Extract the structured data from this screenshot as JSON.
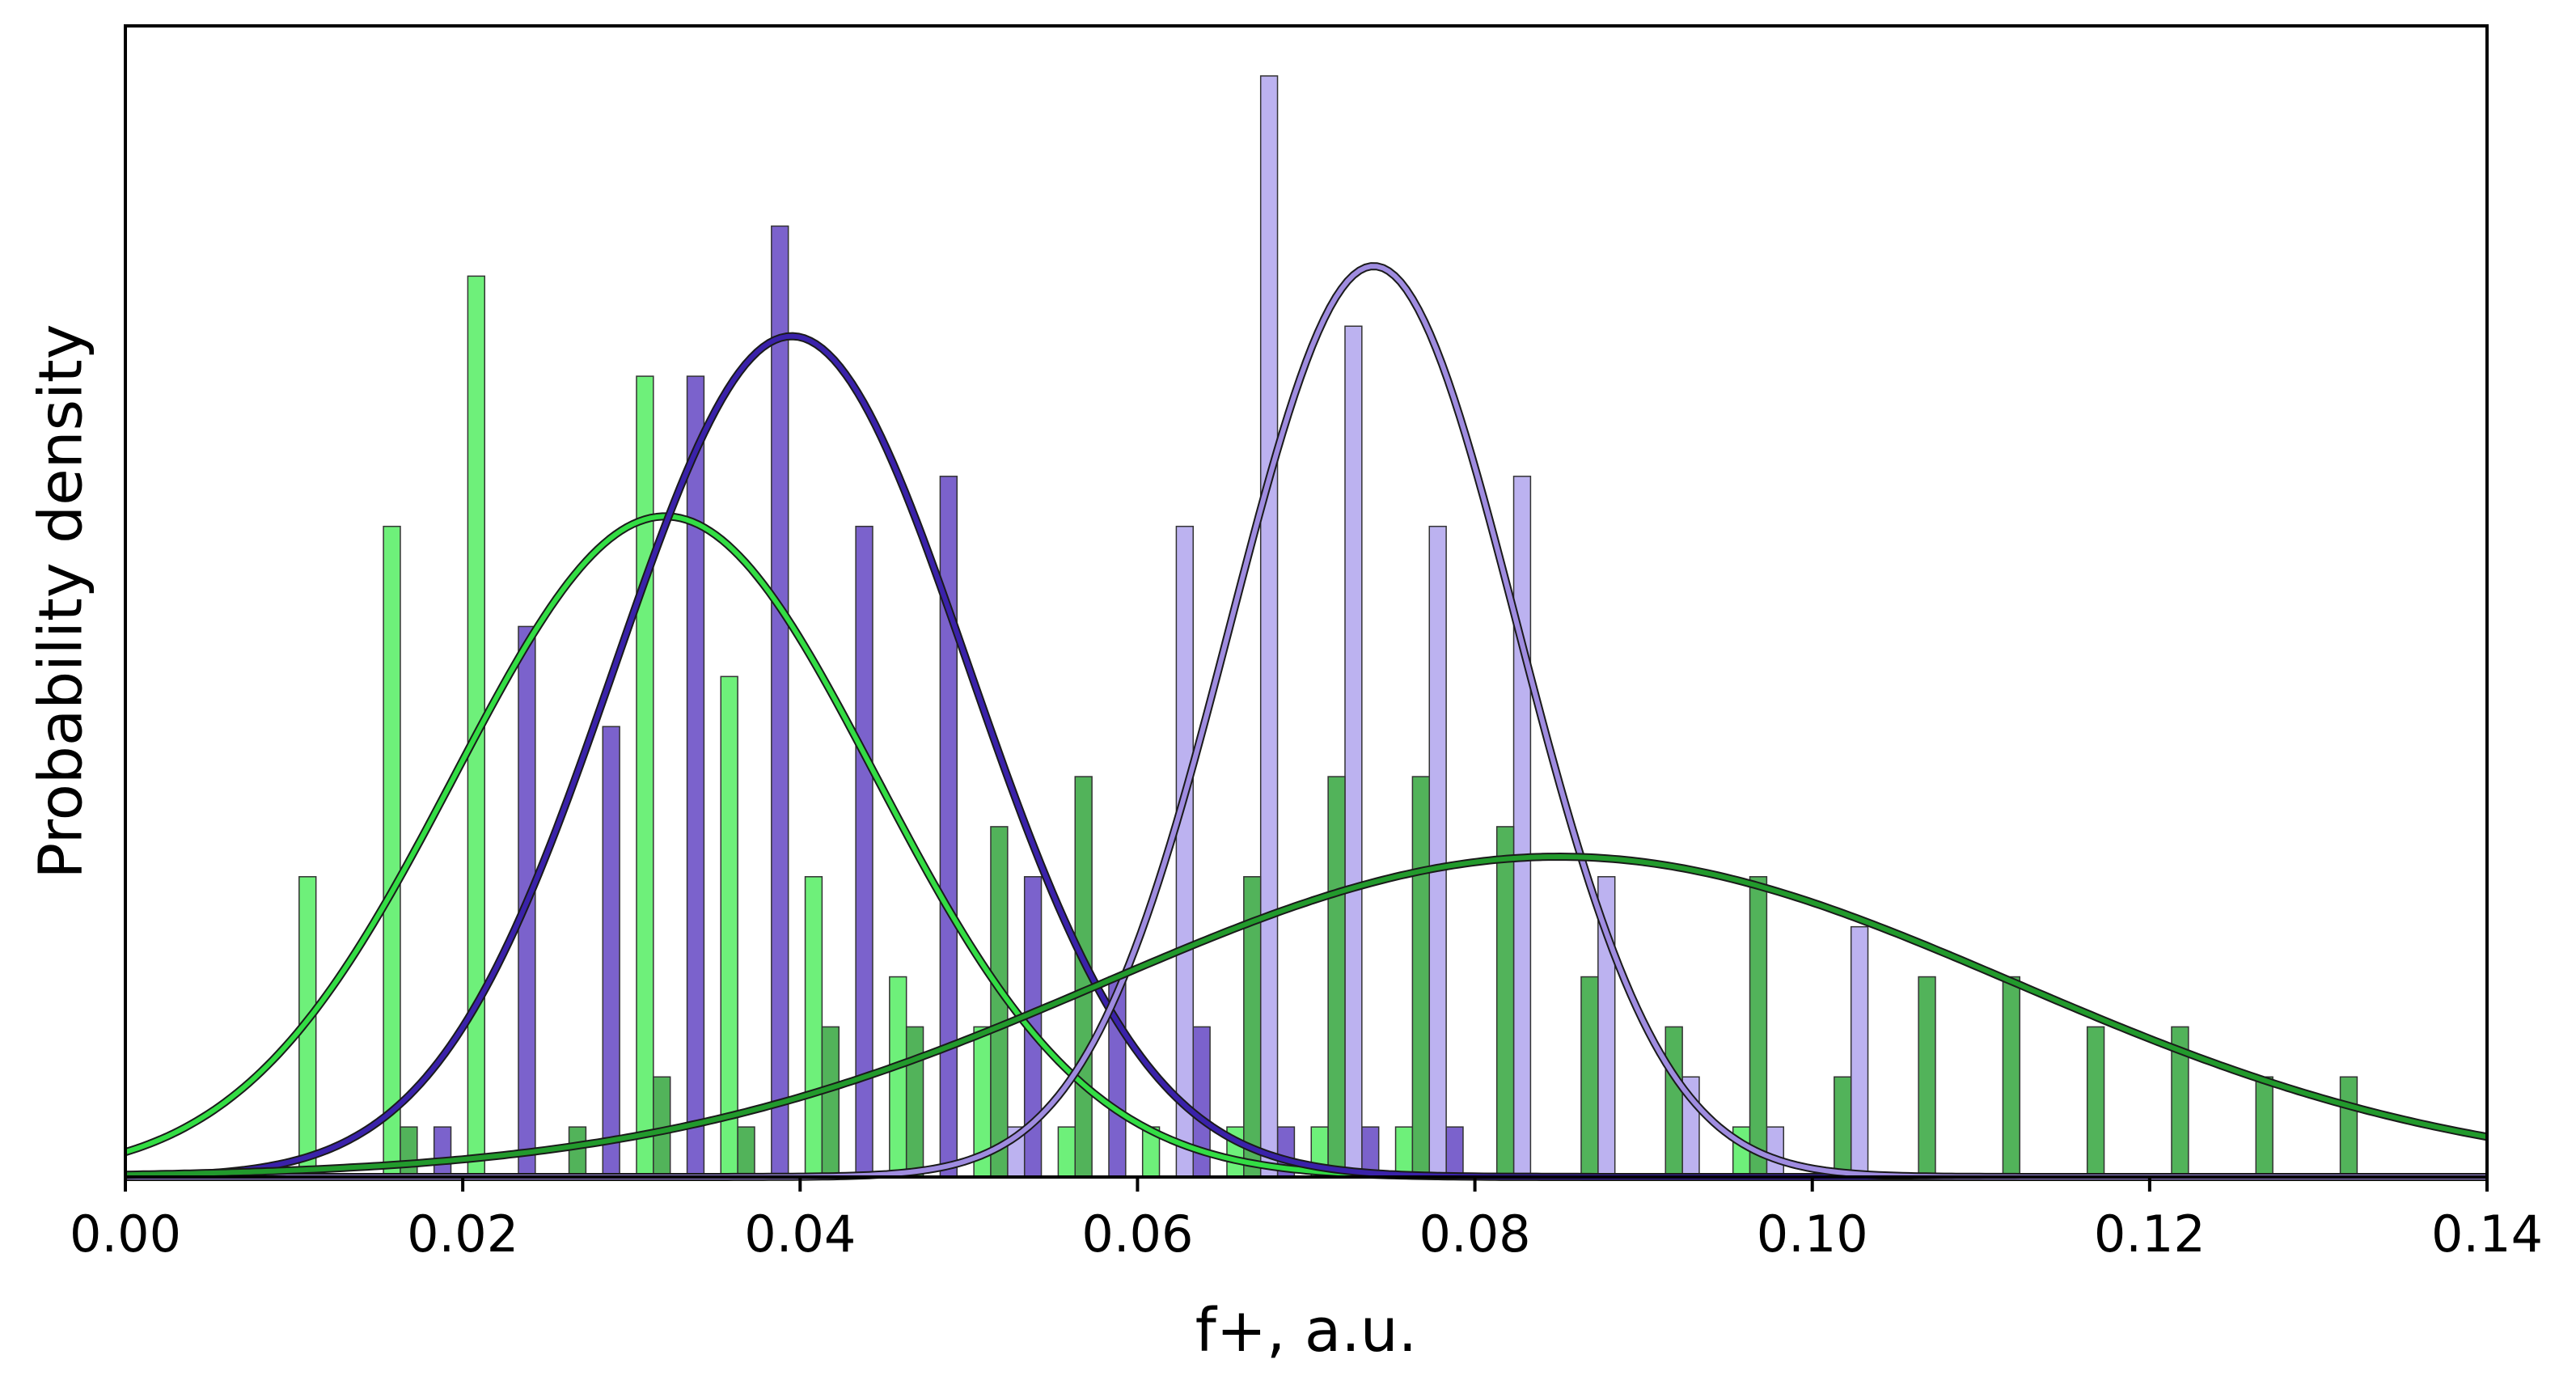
{
  "chart_data": {
    "type": "histogram_with_fit",
    "title": "",
    "xlabel": "f+, a.u.",
    "ylabel": "Probability density",
    "xlim": [
      0.0,
      0.14
    ],
    "ylim": [
      0,
      23
    ],
    "x_ticks": [
      0.0,
      0.02,
      0.04,
      0.06,
      0.08,
      0.1,
      0.12,
      0.14
    ],
    "x_tick_labels": [
      "0.00",
      "0.02",
      "0.04",
      "0.06",
      "0.08",
      "0.10",
      "0.12",
      "0.14"
    ],
    "y_ticks_shown": false,
    "grid": false,
    "legend": null,
    "bar_width": 0.001,
    "series": [
      {
        "name": "light-green",
        "bar_color": "#6ef07a",
        "curve_color": "#33dd44",
        "fit": {
          "distribution": "normal",
          "mean": 0.032,
          "std": 0.0125,
          "peak": 13.2
        },
        "bars": [
          {
            "x": 0.0108,
            "y": 6.0
          },
          {
            "x": 0.0158,
            "y": 13.0
          },
          {
            "x": 0.0208,
            "y": 18.0
          },
          {
            "x": 0.0308,
            "y": 16.0
          },
          {
            "x": 0.0358,
            "y": 10.0
          },
          {
            "x": 0.0408,
            "y": 6.0
          },
          {
            "x": 0.0458,
            "y": 4.0
          },
          {
            "x": 0.0508,
            "y": 3.0
          },
          {
            "x": 0.0558,
            "y": 1.0
          },
          {
            "x": 0.0608,
            "y": 1.0
          },
          {
            "x": 0.0658,
            "y": 1.0
          },
          {
            "x": 0.0708,
            "y": 1.0
          },
          {
            "x": 0.0758,
            "y": 1.0
          },
          {
            "x": 0.0958,
            "y": 1.0
          }
        ]
      },
      {
        "name": "dark-purple",
        "bar_color": "#7b62cc",
        "curve_color": "#3a22aa",
        "fit": {
          "distribution": "normal",
          "mean": 0.0395,
          "std": 0.0105,
          "peak": 16.8
        },
        "bars": [
          {
            "x": 0.0188,
            "y": 1.0
          },
          {
            "x": 0.0238,
            "y": 11.0
          },
          {
            "x": 0.0288,
            "y": 9.0
          },
          {
            "x": 0.0338,
            "y": 16.0
          },
          {
            "x": 0.0388,
            "y": 19.0
          },
          {
            "x": 0.0438,
            "y": 13.0
          },
          {
            "x": 0.0488,
            "y": 14.0
          },
          {
            "x": 0.0538,
            "y": 6.0
          },
          {
            "x": 0.0588,
            "y": 4.0
          },
          {
            "x": 0.0638,
            "y": 3.0
          },
          {
            "x": 0.0688,
            "y": 1.0
          },
          {
            "x": 0.0738,
            "y": 1.0
          },
          {
            "x": 0.0788,
            "y": 1.0
          }
        ]
      },
      {
        "name": "light-purple",
        "bar_color": "#bcb2f0",
        "curve_color": "#9f8ce0",
        "fit": {
          "distribution": "normal",
          "mean": 0.074,
          "std": 0.0085,
          "peak": 18.2
        },
        "bars": [
          {
            "x": 0.0528,
            "y": 1.0
          },
          {
            "x": 0.0628,
            "y": 13.0
          },
          {
            "x": 0.0678,
            "y": 22.0
          },
          {
            "x": 0.0728,
            "y": 17.0
          },
          {
            "x": 0.0778,
            "y": 13.0
          },
          {
            "x": 0.0828,
            "y": 14.0
          },
          {
            "x": 0.0878,
            "y": 6.0
          },
          {
            "x": 0.0928,
            "y": 2.0
          },
          {
            "x": 0.0978,
            "y": 1.0
          },
          {
            "x": 0.1028,
            "y": 5.0
          }
        ]
      },
      {
        "name": "dark-green",
        "bar_color": "#52b35a",
        "curve_color": "#229a2c",
        "fit": {
          "distribution": "normal",
          "mean": 0.085,
          "std": 0.027,
          "peak": 6.4
        },
        "bars": [
          {
            "x": 0.0168,
            "y": 1.0
          },
          {
            "x": 0.0268,
            "y": 1.0
          },
          {
            "x": 0.0318,
            "y": 2.0
          },
          {
            "x": 0.0368,
            "y": 1.0
          },
          {
            "x": 0.0418,
            "y": 3.0
          },
          {
            "x": 0.0468,
            "y": 3.0
          },
          {
            "x": 0.0518,
            "y": 7.0
          },
          {
            "x": 0.0568,
            "y": 8.0
          },
          {
            "x": 0.0668,
            "y": 6.0
          },
          {
            "x": 0.0718,
            "y": 8.0
          },
          {
            "x": 0.0768,
            "y": 8.0
          },
          {
            "x": 0.0818,
            "y": 7.0
          },
          {
            "x": 0.0868,
            "y": 4.0
          },
          {
            "x": 0.0918,
            "y": 3.0
          },
          {
            "x": 0.0968,
            "y": 6.0
          },
          {
            "x": 0.1018,
            "y": 2.0
          },
          {
            "x": 0.1068,
            "y": 4.0
          },
          {
            "x": 0.1118,
            "y": 4.0
          },
          {
            "x": 0.1168,
            "y": 3.0
          },
          {
            "x": 0.1218,
            "y": 3.0
          },
          {
            "x": 0.1268,
            "y": 2.0
          },
          {
            "x": 0.1318,
            "y": 2.0
          }
        ]
      }
    ]
  }
}
